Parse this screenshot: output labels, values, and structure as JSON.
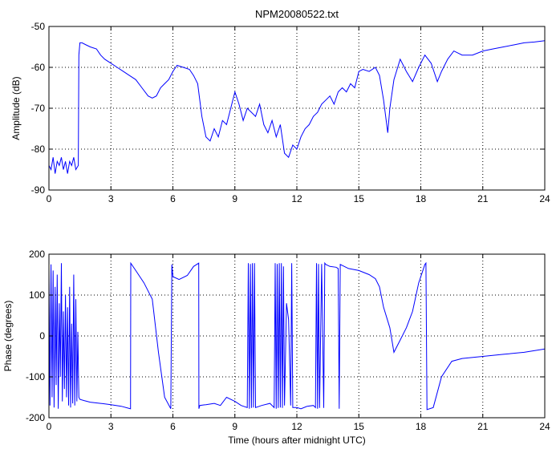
{
  "figure": {
    "background": "#ffffff",
    "line_color": "#0000ff",
    "grid_color": "#000000"
  },
  "chart_data": [
    {
      "type": "line",
      "title": "NPM20080522.txt",
      "xlabel": "",
      "ylabel": "Amplitude (dB)",
      "xlim": [
        0,
        24
      ],
      "ylim": [
        -90,
        -50
      ],
      "xticks": [
        0,
        3,
        6,
        9,
        12,
        15,
        18,
        21,
        24
      ],
      "yticks": [
        -90,
        -80,
        -70,
        -60,
        -50
      ],
      "grid": true,
      "series": [
        {
          "color": "#0000ff",
          "x": [
            0,
            0.1,
            0.2,
            0.3,
            0.4,
            0.5,
            0.6,
            0.7,
            0.8,
            0.9,
            1.0,
            1.1,
            1.2,
            1.3,
            1.42,
            1.45,
            1.5,
            1.6,
            1.8,
            2.0,
            2.3,
            2.5,
            2.7,
            3.0,
            3.3,
            3.6,
            3.9,
            4.2,
            4.5,
            4.8,
            5.0,
            5.2,
            5.4,
            5.6,
            5.8,
            6.0,
            6.2,
            6.5,
            6.8,
            7.0,
            7.2,
            7.4,
            7.6,
            7.8,
            8.0,
            8.2,
            8.4,
            8.6,
            8.8,
            9.0,
            9.2,
            9.4,
            9.6,
            9.8,
            10.0,
            10.2,
            10.4,
            10.6,
            10.8,
            11.0,
            11.2,
            11.4,
            11.6,
            11.8,
            12.0,
            12.2,
            12.4,
            12.6,
            12.8,
            13.0,
            13.2,
            13.4,
            13.6,
            13.8,
            14.0,
            14.2,
            14.4,
            14.6,
            14.8,
            15.0,
            15.2,
            15.5,
            15.8,
            16.0,
            16.2,
            16.4,
            16.5,
            16.7,
            17.0,
            17.3,
            17.6,
            17.9,
            18.2,
            18.5,
            18.8,
            19.0,
            19.3,
            19.6,
            20.0,
            20.5,
            21.0,
            21.5,
            22.0,
            22.5,
            23.0,
            23.5,
            24.0
          ],
          "y": [
            -84,
            -85,
            -82,
            -86,
            -83,
            -84,
            -82,
            -85,
            -83,
            -86,
            -83,
            -84,
            -82,
            -85,
            -84,
            -57,
            -54,
            -54,
            -54.5,
            -55,
            -55.5,
            -57,
            -58,
            -59,
            -60,
            -61,
            -62,
            -63,
            -65,
            -67,
            -67.5,
            -67,
            -65,
            -64,
            -63,
            -61,
            -59.5,
            -60,
            -60.5,
            -62,
            -64,
            -72,
            -77,
            -78,
            -75,
            -77,
            -73,
            -74,
            -70,
            -66,
            -69,
            -73,
            -70,
            -71,
            -72,
            -69,
            -74,
            -76,
            -73,
            -77,
            -74,
            -81,
            -82,
            -79,
            -80,
            -77,
            -75,
            -74,
            -72,
            -71,
            -69,
            -68,
            -67,
            -69,
            -66,
            -65,
            -66,
            -64,
            -65,
            -61,
            -60.5,
            -61,
            -60,
            -62,
            -68,
            -76,
            -70,
            -63,
            -58,
            -61,
            -63.5,
            -60,
            -57,
            -59,
            -63.5,
            -61,
            -58,
            -56,
            -57,
            -57,
            -56,
            -55.5,
            -55,
            -54.5,
            -54,
            -53.8,
            -53.5
          ]
        }
      ]
    },
    {
      "type": "line",
      "title": "",
      "xlabel": "Time (hours after midnight UTC)",
      "ylabel": "Phase (degrees)",
      "xlim": [
        0,
        24
      ],
      "ylim": [
        -200,
        200
      ],
      "xticks": [
        0,
        3,
        6,
        9,
        12,
        15,
        18,
        21,
        24
      ],
      "yticks": [
        -200,
        -100,
        0,
        100,
        200
      ],
      "grid": true,
      "series": [
        {
          "color": "#0000ff",
          "x": [
            0,
            0.05,
            0.1,
            0.15,
            0.2,
            0.25,
            0.3,
            0.35,
            0.4,
            0.45,
            0.5,
            0.55,
            0.6,
            0.65,
            0.7,
            0.75,
            0.8,
            0.85,
            0.9,
            0.95,
            1.0,
            1.05,
            1.1,
            1.15,
            1.2,
            1.25,
            1.3,
            1.35,
            1.4,
            1.45,
            1.5,
            1.7,
            2.0,
            2.5,
            3.0,
            3.5,
            3.95,
            3.96,
            4.2,
            4.6,
            5.0,
            5.3,
            5.6,
            5.9,
            5.95,
            6.0,
            6.3,
            6.7,
            7.0,
            7.25,
            7.26,
            7.3,
            7.6,
            8.0,
            8.3,
            8.6,
            9.0,
            9.3,
            9.6,
            9.65,
            9.7,
            9.75,
            9.8,
            9.85,
            9.9,
            9.95,
            10.0,
            10.3,
            10.7,
            10.9,
            10.95,
            11.0,
            11.05,
            11.1,
            11.15,
            11.2,
            11.25,
            11.3,
            11.35,
            11.4,
            11.5,
            11.6,
            11.7,
            11.75,
            11.8,
            12.0,
            12.2,
            12.5,
            12.8,
            12.9,
            12.95,
            13.0,
            13.05,
            13.1,
            13.2,
            13.3,
            13.35,
            13.4,
            13.6,
            13.9,
            14.0,
            14.05,
            14.1,
            14.5,
            15.0,
            15.5,
            15.8,
            16.0,
            16.2,
            16.5,
            16.7,
            17.0,
            17.3,
            17.6,
            17.9,
            18.2,
            18.25,
            18.3,
            18.6,
            19.0,
            19.5,
            20.0,
            21.0,
            22.0,
            23.0,
            24.0
          ],
          "y": [
            170,
            -170,
            175,
            -150,
            160,
            -175,
            120,
            -120,
            150,
            -178,
            80,
            -100,
            178,
            -160,
            60,
            -130,
            100,
            -150,
            70,
            -170,
            120,
            -175,
            30,
            -165,
            150,
            -170,
            90,
            -160,
            10,
            -150,
            -155,
            -158,
            -162,
            -165,
            -168,
            -172,
            -178,
            178,
            160,
            130,
            90,
            -40,
            -150,
            -178,
            175,
            145,
            138,
            148,
            170,
            178,
            -178,
            -170,
            -168,
            -165,
            -170,
            -150,
            -160,
            -170,
            -175,
            178,
            -178,
            176,
            -176,
            178,
            -175,
            178,
            -175,
            -170,
            -165,
            -175,
            178,
            -178,
            176,
            -176,
            178,
            -175,
            178,
            -176,
            170,
            -170,
            80,
            40,
            -170,
            178,
            -175,
            -175,
            -178,
            -172,
            -170,
            -175,
            178,
            -178,
            176,
            -176,
            176,
            -176,
            178,
            175,
            170,
            168,
            165,
            -178,
            175,
            165,
            160,
            150,
            140,
            120,
            70,
            20,
            -40,
            -10,
            20,
            60,
            130,
            175,
            178,
            -180,
            -175,
            -100,
            -62,
            -55,
            -50,
            -45,
            -40,
            -32
          ]
        }
      ]
    }
  ]
}
